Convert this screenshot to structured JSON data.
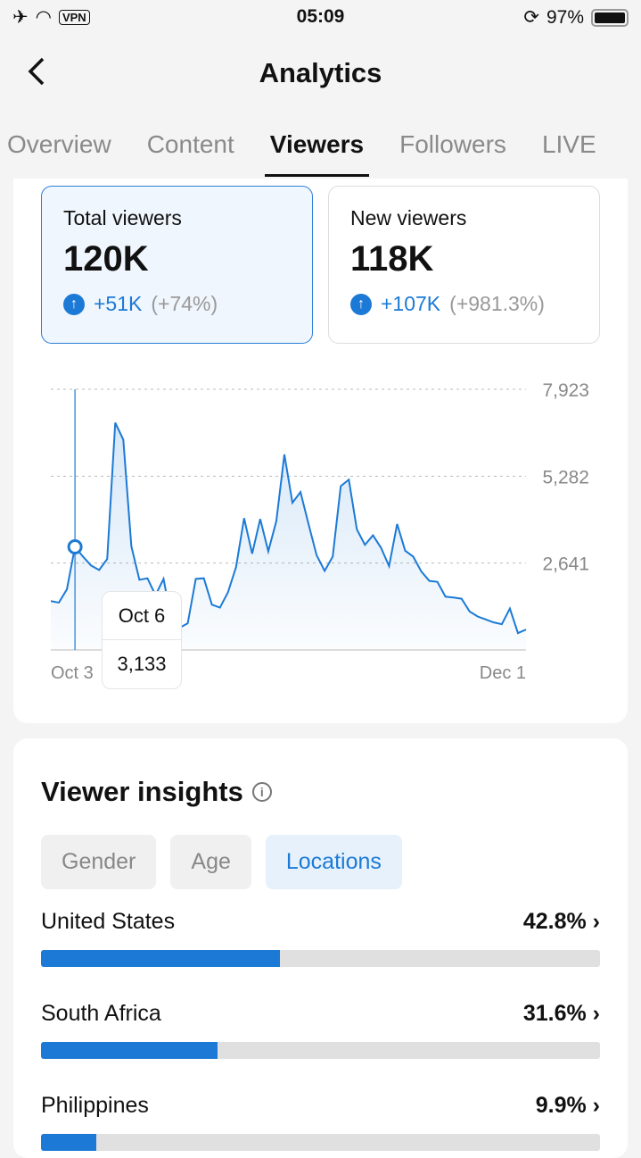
{
  "status": {
    "time": "05:09",
    "vpn": "VPN",
    "battery": "97%",
    "battery_level": 0.97
  },
  "header": {
    "back": "‹",
    "title": "Analytics"
  },
  "tabs": [
    "Overview",
    "Content",
    "Viewers",
    "Followers",
    "LIVE"
  ],
  "active_tab": "Viewers",
  "stats": [
    {
      "label": "Total viewers",
      "value": "120K",
      "delta": "+51K",
      "pct": "(+74%)"
    },
    {
      "label": "New viewers",
      "value": "118K",
      "delta": "+107K",
      "pct": "(+981.3%)"
    }
  ],
  "chart_data": {
    "type": "area",
    "x_start": "Oct 3",
    "x_end": "Dec 1",
    "y_ticks": [
      2641,
      5282,
      7923
    ],
    "y_tick_labels": [
      "2,641",
      "5,282",
      "7,923"
    ],
    "ylim": [
      0,
      7923
    ],
    "values": [
      1486,
      1440,
      1846,
      3133,
      2836,
      2566,
      2431,
      2764,
      6906,
      6392,
      3151,
      2134,
      2179,
      1666,
      2161,
      855,
      675,
      810,
      2161,
      2179,
      1378,
      1288,
      1756,
      2521,
      4006,
      2926,
      3980,
      2998,
      3916,
      5942,
      4475,
      4799,
      3827,
      2881,
      2404,
      2836,
      4979,
      5177,
      3664,
      3196,
      3484,
      3106,
      2548,
      3827,
      3016,
      2836,
      2386,
      2098,
      2071,
      1621,
      1594,
      1558,
      1170,
      1017,
      927,
      837,
      783,
      1260,
      513,
      621
    ],
    "selected_index": 3,
    "tooltip": {
      "date": "Oct 6",
      "value": "3,133"
    },
    "color": "#1c7ad6"
  },
  "insights": {
    "title": "Viewer insights",
    "filters": [
      "Gender",
      "Age",
      "Locations"
    ],
    "active_filter": "Locations",
    "locations": [
      {
        "name": "United States",
        "pct": "42.8%",
        "value": 42.8
      },
      {
        "name": "South Africa",
        "pct": "31.6%",
        "value": 31.6
      },
      {
        "name": "Philippines",
        "pct": "9.9%",
        "value": 9.9
      }
    ]
  }
}
